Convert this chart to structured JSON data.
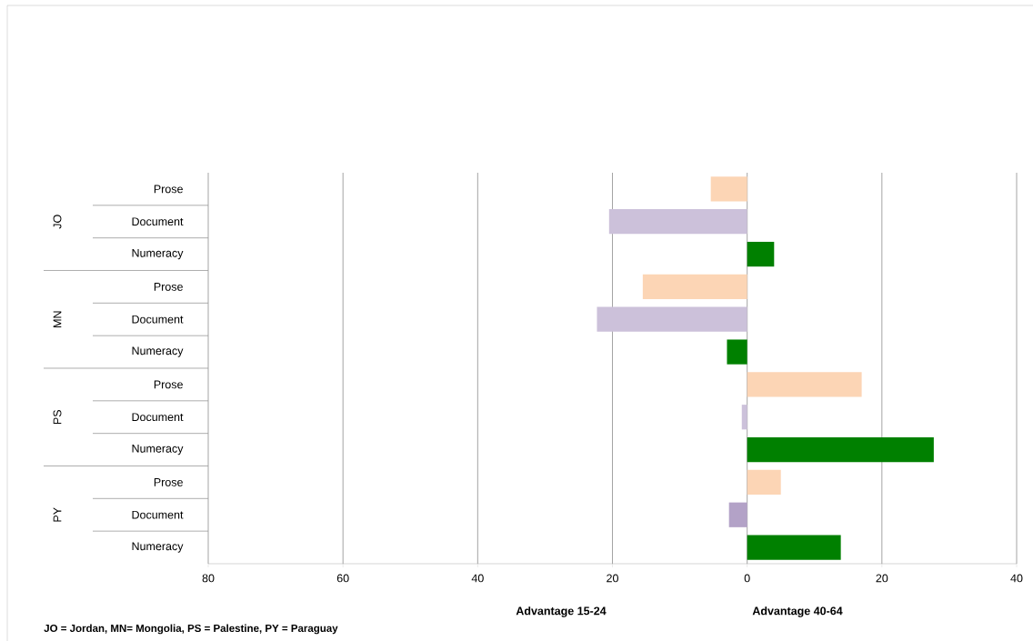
{
  "chart_data": {
    "type": "bar",
    "orientation": "horizontal",
    "categories": [
      "Prose",
      "Document",
      "Numeracy",
      "Prose",
      "Document",
      "Numeracy",
      "Prose",
      "Document",
      "Numeracy",
      "Prose",
      "Document",
      "Numeracy"
    ],
    "values": [
      -5.4,
      -20.5,
      4.0,
      -15.5,
      -22.3,
      -3.0,
      17.0,
      -0.8,
      27.7,
      5.0,
      -2.7,
      13.9
    ],
    "colors": [
      "#fcd5b5",
      "#ccc1da",
      "#008000",
      "#fcd5b5",
      "#ccc1da",
      "#008000",
      "#fcd5b5",
      "#ccc1da",
      "#008000",
      "#fcd5b5",
      "#b3a2c7",
      "#008000"
    ],
    "xlim": [
      -80,
      40
    ],
    "xticks": [
      {
        "value": -80,
        "label": "80"
      },
      {
        "value": -60,
        "label": "60"
      },
      {
        "value": -40,
        "label": "40"
      },
      {
        "value": -20,
        "label": "20"
      },
      0,
      20,
      40
    ],
    "grid": "x",
    "annotations": [
      "JO",
      "MN",
      "PS",
      "PY",
      "Advantage  15-24",
      "Advantage 40-64",
      "JO = Jordan,  MN= Mongolia, PS = Palestine, PY = Paraguay"
    ]
  }
}
